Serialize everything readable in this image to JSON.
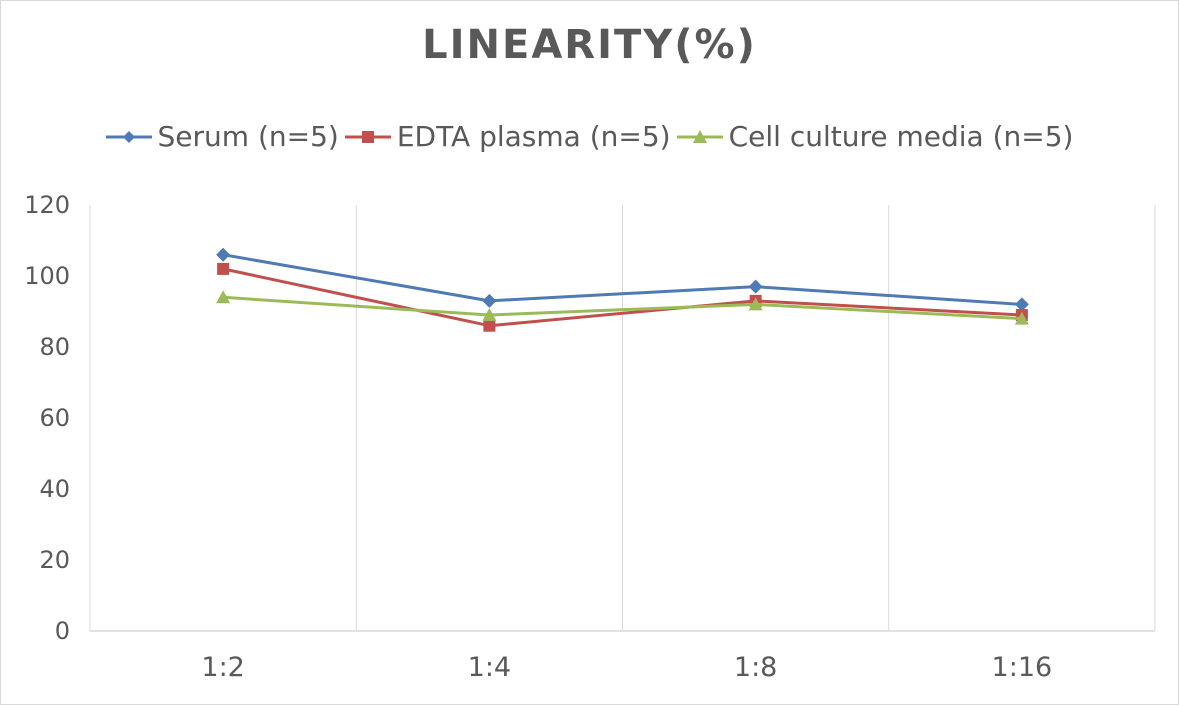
{
  "chart_data": {
    "type": "line",
    "title": "LINEARITY(%)",
    "categories": [
      "1:2",
      "1:4",
      "1:8",
      "1:16"
    ],
    "ylim": [
      0,
      120
    ],
    "yticks": [
      0,
      20,
      40,
      60,
      80,
      100,
      120
    ],
    "grid": "vertical",
    "legend_position": "top",
    "series": [
      {
        "name": "Serum (n=5)",
        "values": [
          106,
          93,
          97,
          92
        ],
        "color": "#4f7ab3",
        "marker": "diamond"
      },
      {
        "name": "EDTA plasma (n=5)",
        "values": [
          102,
          86,
          93,
          89
        ],
        "color": "#c0504d",
        "marker": "square"
      },
      {
        "name": "Cell culture media (n=5)",
        "values": [
          94,
          89,
          92,
          88
        ],
        "color": "#9bbb59",
        "marker": "triangle"
      }
    ]
  }
}
